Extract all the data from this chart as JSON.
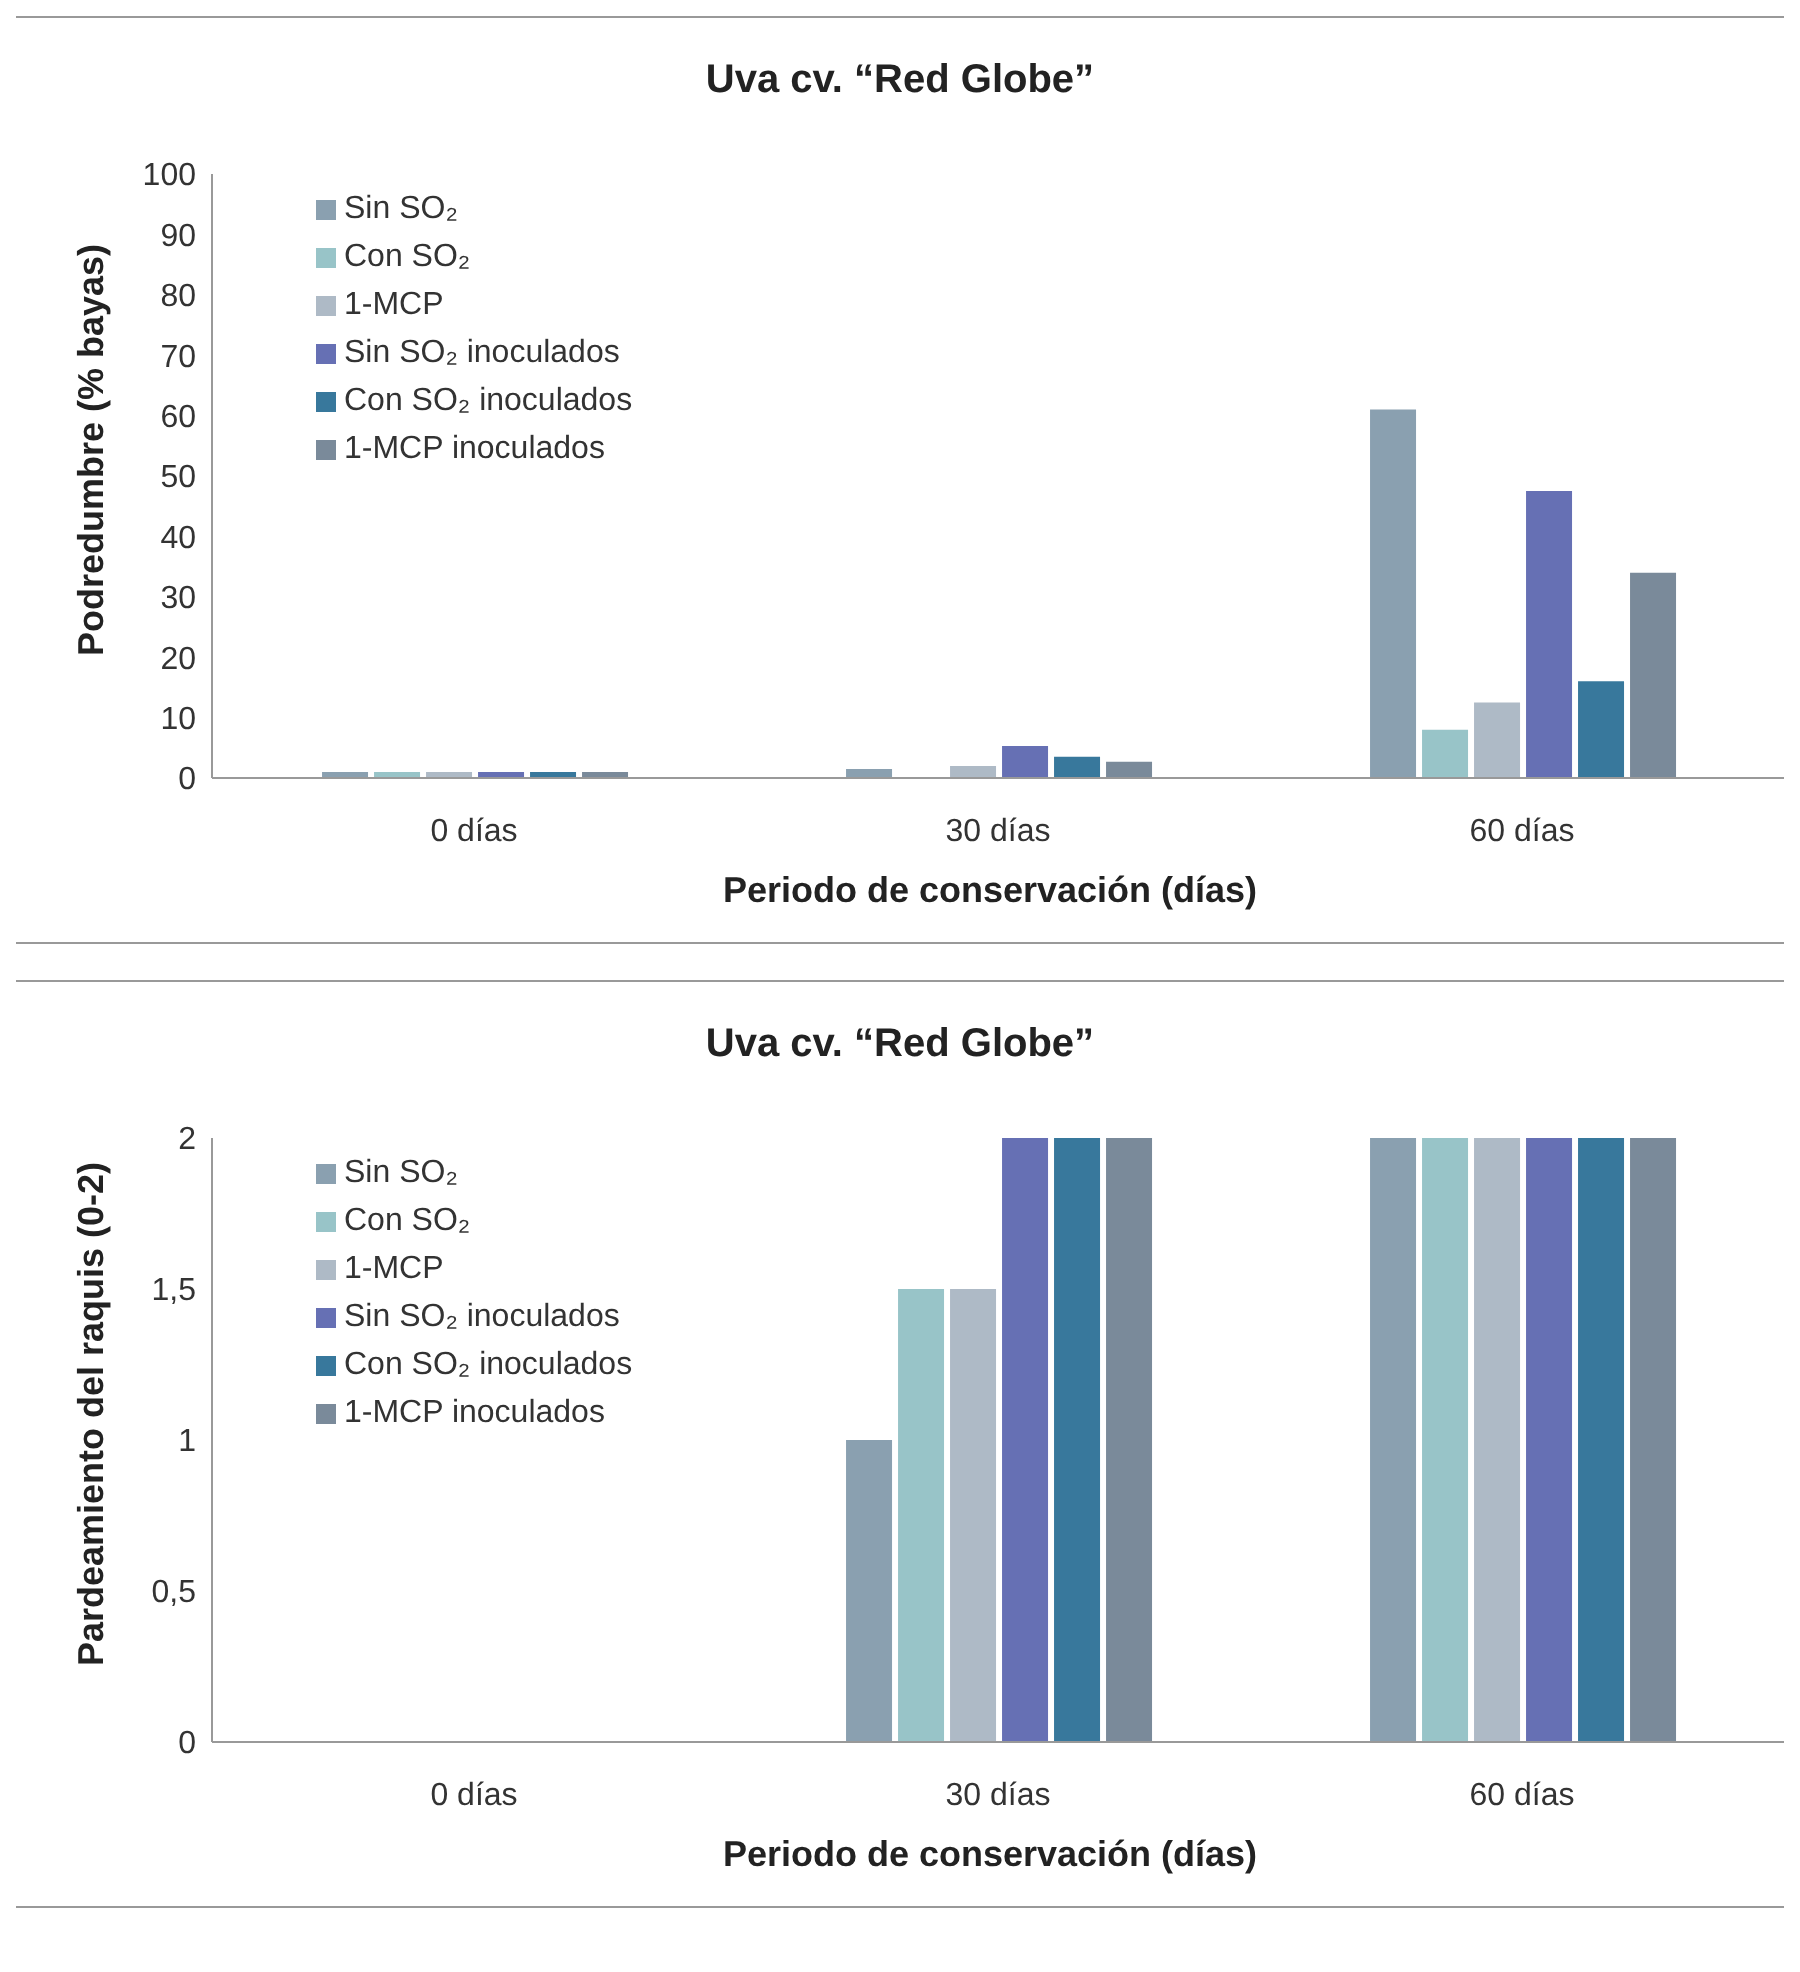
{
  "chart_data": [
    {
      "type": "bar",
      "title": "Uva cv. “Red Globe”",
      "xlabel": "Periodo de conservación (días)",
      "ylabel": "Podredumbre (% bayas)",
      "categories": [
        "0 días",
        "30 días",
        "60 días"
      ],
      "ylim": [
        0,
        100
      ],
      "yticks": [
        0,
        10,
        20,
        30,
        40,
        50,
        60,
        70,
        80,
        90,
        100
      ],
      "legend": "top left",
      "series": [
        {
          "name": "Sin SO₂",
          "color": "#8aa0b0",
          "values": [
            1,
            1.5,
            61
          ]
        },
        {
          "name": "Con SO₂",
          "color": "#98c4c8",
          "values": [
            1,
            0,
            8
          ]
        },
        {
          "name": "1-MCP",
          "color": "#aebac6",
          "values": [
            1,
            2,
            12.5
          ]
        },
        {
          "name": "Sin SO₂ inoculados",
          "color": "#6670b4",
          "values": [
            1,
            5.3,
            47.5
          ]
        },
        {
          "name": "Con SO₂ inoculados",
          "color": "#38789c",
          "values": [
            1,
            3.5,
            16
          ]
        },
        {
          "name": "1-MCP inoculados",
          "color": "#7a8a9a",
          "values": [
            1,
            2.7,
            34
          ]
        }
      ]
    },
    {
      "type": "bar",
      "title": "Uva cv. “Red Globe”",
      "xlabel": "Periodo de conservación (días)",
      "ylabel": "Pardeamiento del raquis (0-2)",
      "categories": [
        "0 días",
        "30 días",
        "60 días"
      ],
      "ylim": [
        0,
        2
      ],
      "yticks": [
        0,
        {
          "value": 0.5,
          "label": "0,5"
        },
        1,
        {
          "value": 1.5,
          "label": "1,5"
        },
        2
      ],
      "legend": "top left",
      "series": [
        {
          "name": "Sin SO₂",
          "color": "#8aa0b0",
          "values": [
            0,
            1,
            2
          ]
        },
        {
          "name": "Con SO₂",
          "color": "#98c4c8",
          "values": [
            0,
            1.5,
            2
          ]
        },
        {
          "name": "1-MCP",
          "color": "#aebac6",
          "values": [
            0,
            1.5,
            2
          ]
        },
        {
          "name": "Sin SO₂ inoculados",
          "color": "#6670b4",
          "values": [
            0,
            2,
            2
          ]
        },
        {
          "name": "Con SO₂ inoculados",
          "color": "#38789c",
          "values": [
            0,
            2,
            2
          ]
        },
        {
          "name": "1-MCP inoculados",
          "color": "#7a8a9a",
          "values": [
            0,
            2,
            2
          ]
        }
      ]
    }
  ]
}
